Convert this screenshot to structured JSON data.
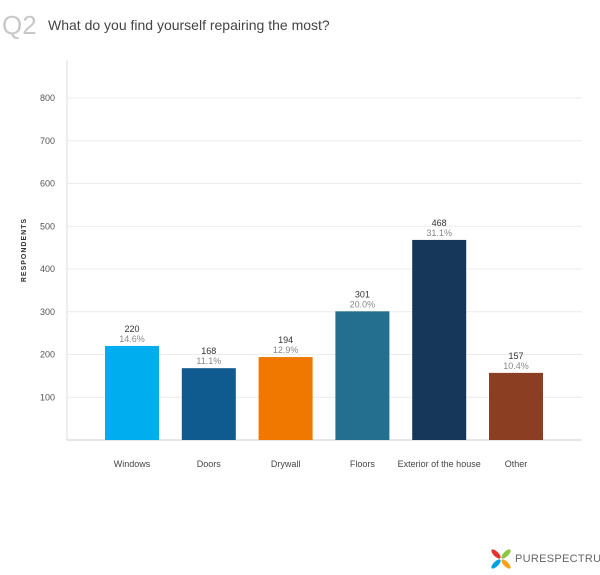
{
  "question": {
    "number": "Q2",
    "text": "What do you find yourself repairing the most?"
  },
  "chart_data": {
    "type": "bar",
    "categories": [
      "Windows",
      "Doors",
      "Drywall",
      "Floors",
      "Exterior of the house",
      "Other"
    ],
    "values": [
      220,
      168,
      194,
      301,
      468,
      157
    ],
    "percent_labels": [
      "14.6%",
      "11.1%",
      "12.9%",
      "20.0%",
      "31.1%",
      "10.4%"
    ],
    "colors": [
      "#00adef",
      "#0f5a8e",
      "#f07800",
      "#226f90",
      "#16365a",
      "#8b3e22"
    ],
    "ylabel": "RESPONDENTS",
    "ylim": [
      0,
      800
    ],
    "yticks": [
      100,
      200,
      300,
      400,
      500,
      600,
      700,
      800
    ],
    "grid": true
  },
  "brand": {
    "name": "PURESPECTRUM",
    "logo_colors": [
      "#e5312f",
      "#f6a21b",
      "#8dc63f",
      "#00a0df"
    ]
  }
}
